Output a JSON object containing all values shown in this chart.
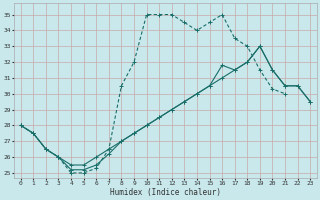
{
  "xlabel": "Humidex (Indice chaleur)",
  "bg_color": "#c8e8ec",
  "grid_color": "#b0d4d8",
  "line_color": "#1a6e68",
  "xlim": [
    -0.5,
    23.5
  ],
  "ylim": [
    24.7,
    35.7
  ],
  "yticks": [
    25,
    26,
    27,
    28,
    29,
    30,
    31,
    32,
    33,
    34,
    35
  ],
  "xticks": [
    0,
    1,
    2,
    3,
    4,
    5,
    6,
    7,
    8,
    9,
    10,
    11,
    12,
    13,
    14,
    15,
    16,
    17,
    18,
    19,
    20,
    21,
    22,
    23
  ],
  "s1_x": [
    0,
    1,
    2,
    3,
    4,
    5,
    6,
    7,
    8,
    9,
    10,
    11,
    12,
    13,
    14,
    15,
    16,
    17,
    18,
    19,
    20,
    21
  ],
  "s1_y": [
    28,
    27.5,
    26.5,
    26,
    25,
    25,
    25.3,
    26.5,
    30.5,
    32,
    35,
    35,
    35,
    34.5,
    34,
    34.5,
    35,
    33.5,
    33,
    31.5,
    30.3,
    30.0
  ],
  "s2_x": [
    0,
    1,
    2,
    3,
    4,
    5,
    6,
    7,
    8,
    9,
    10,
    11,
    12,
    13,
    14,
    15,
    16,
    17,
    18,
    19,
    20,
    21,
    22,
    23
  ],
  "s2_y": [
    28,
    27.5,
    26.5,
    26,
    25.2,
    25.2,
    25.5,
    26.2,
    27,
    27.5,
    28,
    28.5,
    29,
    29.5,
    30,
    30.5,
    31.8,
    31.5,
    32,
    33,
    31.5,
    30.5,
    30.5,
    29.5
  ],
  "s3_x": [
    0,
    1,
    2,
    3,
    4,
    5,
    6,
    7,
    8,
    9,
    10,
    11,
    12,
    13,
    14,
    15,
    16,
    17,
    18,
    19,
    20,
    21,
    22,
    23
  ],
  "s3_y": [
    28,
    27.5,
    26.5,
    26,
    25.5,
    25.5,
    26,
    26.5,
    27,
    27.5,
    28,
    28.5,
    29,
    29.5,
    30,
    30.5,
    31,
    31.5,
    32,
    33,
    31.5,
    30.5,
    30.5,
    29.5
  ]
}
